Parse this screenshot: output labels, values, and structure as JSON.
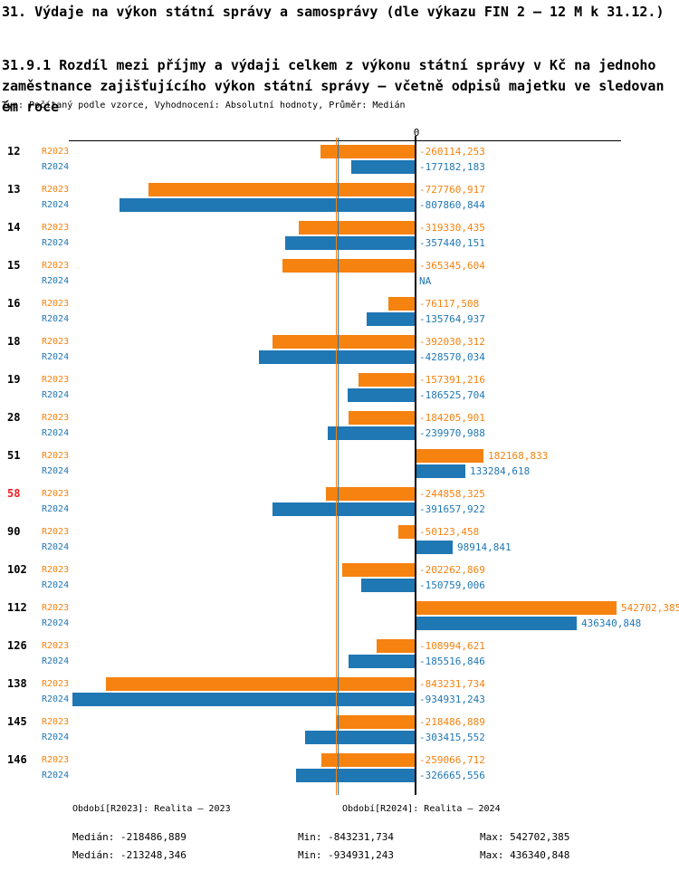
{
  "header": {
    "title": "31. Výdaje na výkon státní správy a samosprávy (dle výkazu FIN 2 – 12 M k 31.12.)",
    "subtitle": "31.9.1 Rozdíl mezi příjmy a výdaji celkem z výkonu státní správy v Kč na jednoho zaměstnance zajišťujícího výkon státní správy – včetně odpisů majetku ve sledovaném roce",
    "meta": "Typ: Počítaný podle vzorce, Vyhodnocení: Absolutní hodnoty, Průměr: Medián"
  },
  "colors": {
    "orange": "#f6820f",
    "blue": "#1f77b4",
    "red": "#ed1c24",
    "axis": "#000000"
  },
  "chart_data": {
    "type": "bar",
    "orientation": "horizontal",
    "zero_label": "0",
    "categories": [
      "12",
      "13",
      "14",
      "15",
      "16",
      "18",
      "19",
      "28",
      "51",
      "58",
      "90",
      "102",
      "112",
      "126",
      "138",
      "145",
      "146"
    ],
    "red_categories": [
      "58"
    ],
    "series": [
      {
        "name": "R2023",
        "color_key": "orange",
        "values": [
          -260114.253,
          -727760.917,
          -319330.435,
          -365345.604,
          -76117.508,
          -392030.312,
          -157391.216,
          -184205.901,
          182168.833,
          -244858.325,
          -50123.458,
          -202262.869,
          542702.385,
          -108994.621,
          -843231.734,
          -218486.889,
          -259066.712
        ],
        "labels": [
          "-260114,253",
          "-727760,917",
          "-319330,435",
          "-365345,604",
          "-76117,508",
          "-392030,312",
          "-157391,216",
          "-184205,901",
          "182168,833",
          "-244858,325",
          "-50123,458",
          "-202262,869",
          "542702,385",
          "-108994,621",
          "-843231,734",
          "-218486,889",
          "-259066,712"
        ]
      },
      {
        "name": "R2024",
        "color_key": "blue",
        "values": [
          -177182.183,
          -807860.844,
          -357440.151,
          null,
          -135764.937,
          -428570.034,
          -186525.704,
          -239970.988,
          133284.618,
          -391657.922,
          98914.841,
          -150759.006,
          436340.848,
          -185516.846,
          -934931.243,
          -303415.552,
          -326665.556
        ],
        "labels": [
          "-177182,183",
          "-807860,844",
          "-357440,151",
          "NA",
          "-135764,937",
          "-428570,034",
          "-186525,704",
          "-239970,988",
          "133284,618",
          "-391657,922",
          "98914,841",
          "-150759,006",
          "436340,848",
          "-185516,846",
          "-934931,243",
          "-303415,552",
          "-326665,556"
        ]
      }
    ],
    "medians": {
      "R2023": -218486.889,
      "R2024": -213248.346
    },
    "axis_range": [
      -960000,
      560000
    ],
    "grid": false,
    "legend_position": "bottom"
  },
  "footer": {
    "legend_r2023": "Období[R2023]: Realita – 2023",
    "legend_r2024": "Období[R2024]: Realita – 2024",
    "stats_r2023": {
      "median": "Medián: -218486,889",
      "min": "Min: -843231,734",
      "max": "Max: 542702,385"
    },
    "stats_r2024": {
      "median": "Medián: -213248,346",
      "min": "Min: -934931,243",
      "max": "Max: 436340,848"
    }
  }
}
